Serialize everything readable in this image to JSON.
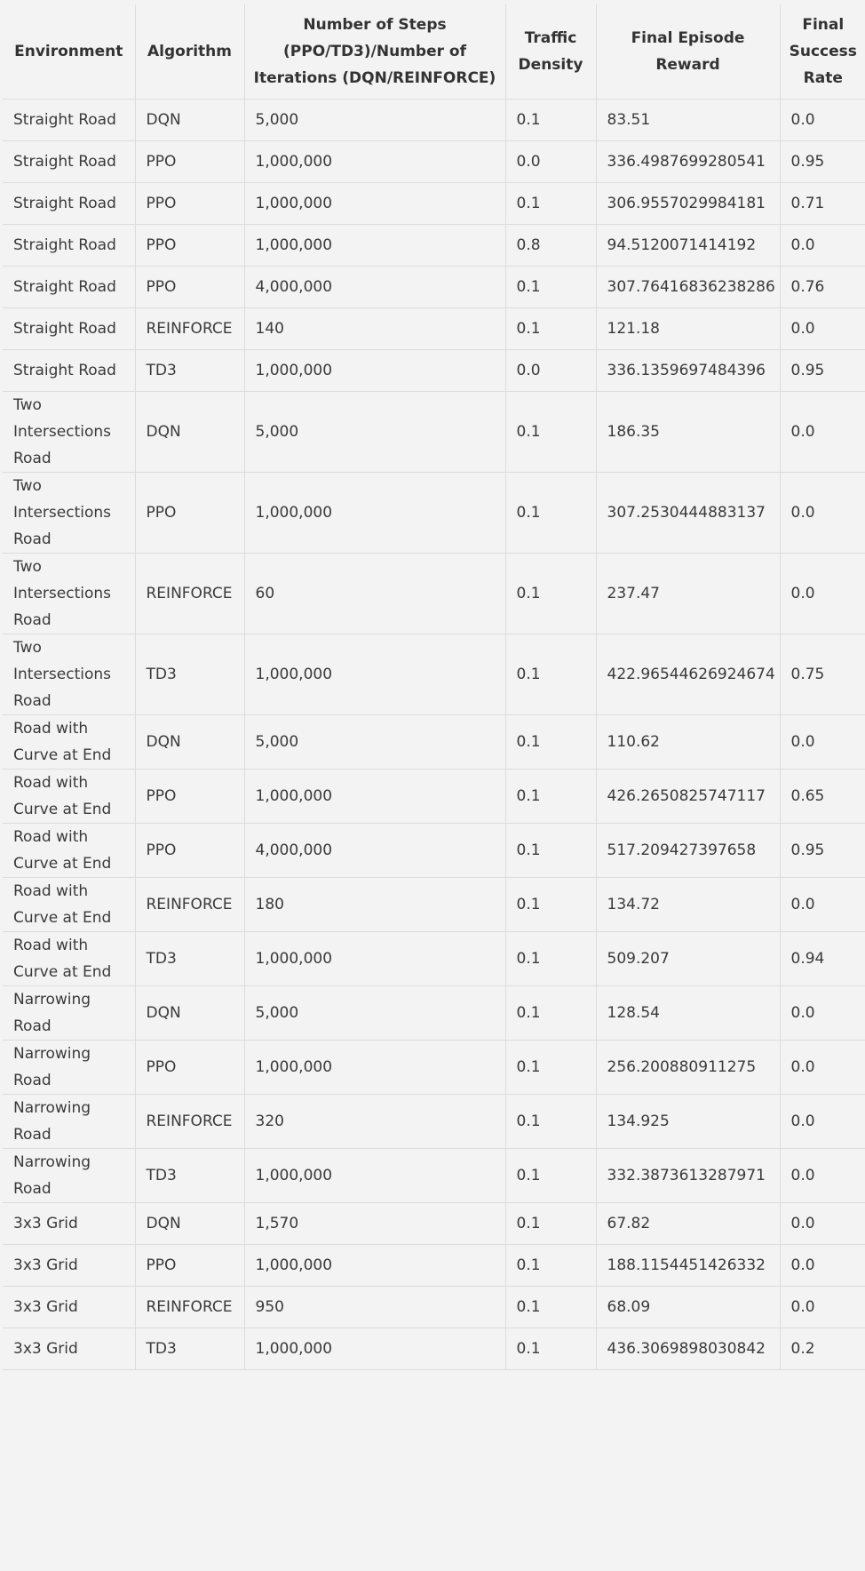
{
  "table": {
    "headers": [
      "Environment",
      "Algorithm",
      "Number of Steps (PPO/TD3)/Number of Iterations (DQN/REINFORCE)",
      "Traffic Density",
      "Final Episode Reward",
      "Final Success Rate"
    ],
    "rows": [
      [
        "Straight Road",
        "DQN",
        "5,000",
        "0.1",
        "83.51",
        "0.0"
      ],
      [
        "Straight Road",
        "PPO",
        "1,000,000",
        "0.0",
        "336.4987699280541",
        "0.95"
      ],
      [
        "Straight Road",
        "PPO",
        "1,000,000",
        "0.1",
        "306.9557029984181",
        "0.71"
      ],
      [
        "Straight Road",
        "PPO",
        "1,000,000",
        "0.8",
        "94.5120071414192",
        "0.0"
      ],
      [
        "Straight Road",
        "PPO",
        "4,000,000",
        "0.1",
        "307.76416836238286",
        "0.76"
      ],
      [
        "Straight Road",
        "REINFORCE",
        "140",
        "0.1",
        "121.18",
        "0.0"
      ],
      [
        "Straight Road",
        "TD3",
        "1,000,000",
        "0.0",
        "336.1359697484396",
        "0.95"
      ],
      [
        "Two Intersections Road",
        "DQN",
        "5,000",
        "0.1",
        "186.35",
        "0.0"
      ],
      [
        "Two Intersections Road",
        "PPO",
        "1,000,000",
        "0.1",
        "307.2530444883137",
        "0.0"
      ],
      [
        "Two Intersections Road",
        "REINFORCE",
        "60",
        "0.1",
        "237.47",
        "0.0"
      ],
      [
        "Two Intersections Road",
        "TD3",
        "1,000,000",
        "0.1",
        "422.96544626924674",
        "0.75"
      ],
      [
        "Road with Curve at End",
        "DQN",
        "5,000",
        "0.1",
        "110.62",
        "0.0"
      ],
      [
        "Road with Curve at End",
        "PPO",
        "1,000,000",
        "0.1",
        "426.2650825747117",
        "0.65"
      ],
      [
        "Road with Curve at End",
        "PPO",
        "4,000,000",
        "0.1",
        "517.209427397658",
        "0.95"
      ],
      [
        "Road with Curve at End",
        "REINFORCE",
        "180",
        "0.1",
        "134.72",
        "0.0"
      ],
      [
        "Road with Curve at End",
        "TD3",
        "1,000,000",
        "0.1",
        "509.207",
        "0.94"
      ],
      [
        "Narrowing Road",
        "DQN",
        "5,000",
        "0.1",
        "128.54",
        "0.0"
      ],
      [
        "Narrowing Road",
        "PPO",
        "1,000,000",
        "0.1",
        "256.200880911275",
        "0.0"
      ],
      [
        "Narrowing Road",
        "REINFORCE",
        "320",
        "0.1",
        "134.925",
        "0.0"
      ],
      [
        "Narrowing Road",
        "TD3",
        "1,000,000",
        "0.1",
        "332.3873613287971",
        "0.0"
      ],
      [
        "3x3 Grid",
        "DQN",
        "1,570",
        "0.1",
        "67.82",
        "0.0"
      ],
      [
        "3x3 Grid",
        "PPO",
        "1,000,000",
        "0.1",
        "188.1154451426332",
        "0.0"
      ],
      [
        "3x3 Grid",
        "REINFORCE",
        "950",
        "0.1",
        "68.09",
        "0.0"
      ],
      [
        "3x3 Grid",
        "TD3",
        "1,000,000",
        "0.1",
        "436.3069898030842",
        "0.2"
      ]
    ]
  }
}
